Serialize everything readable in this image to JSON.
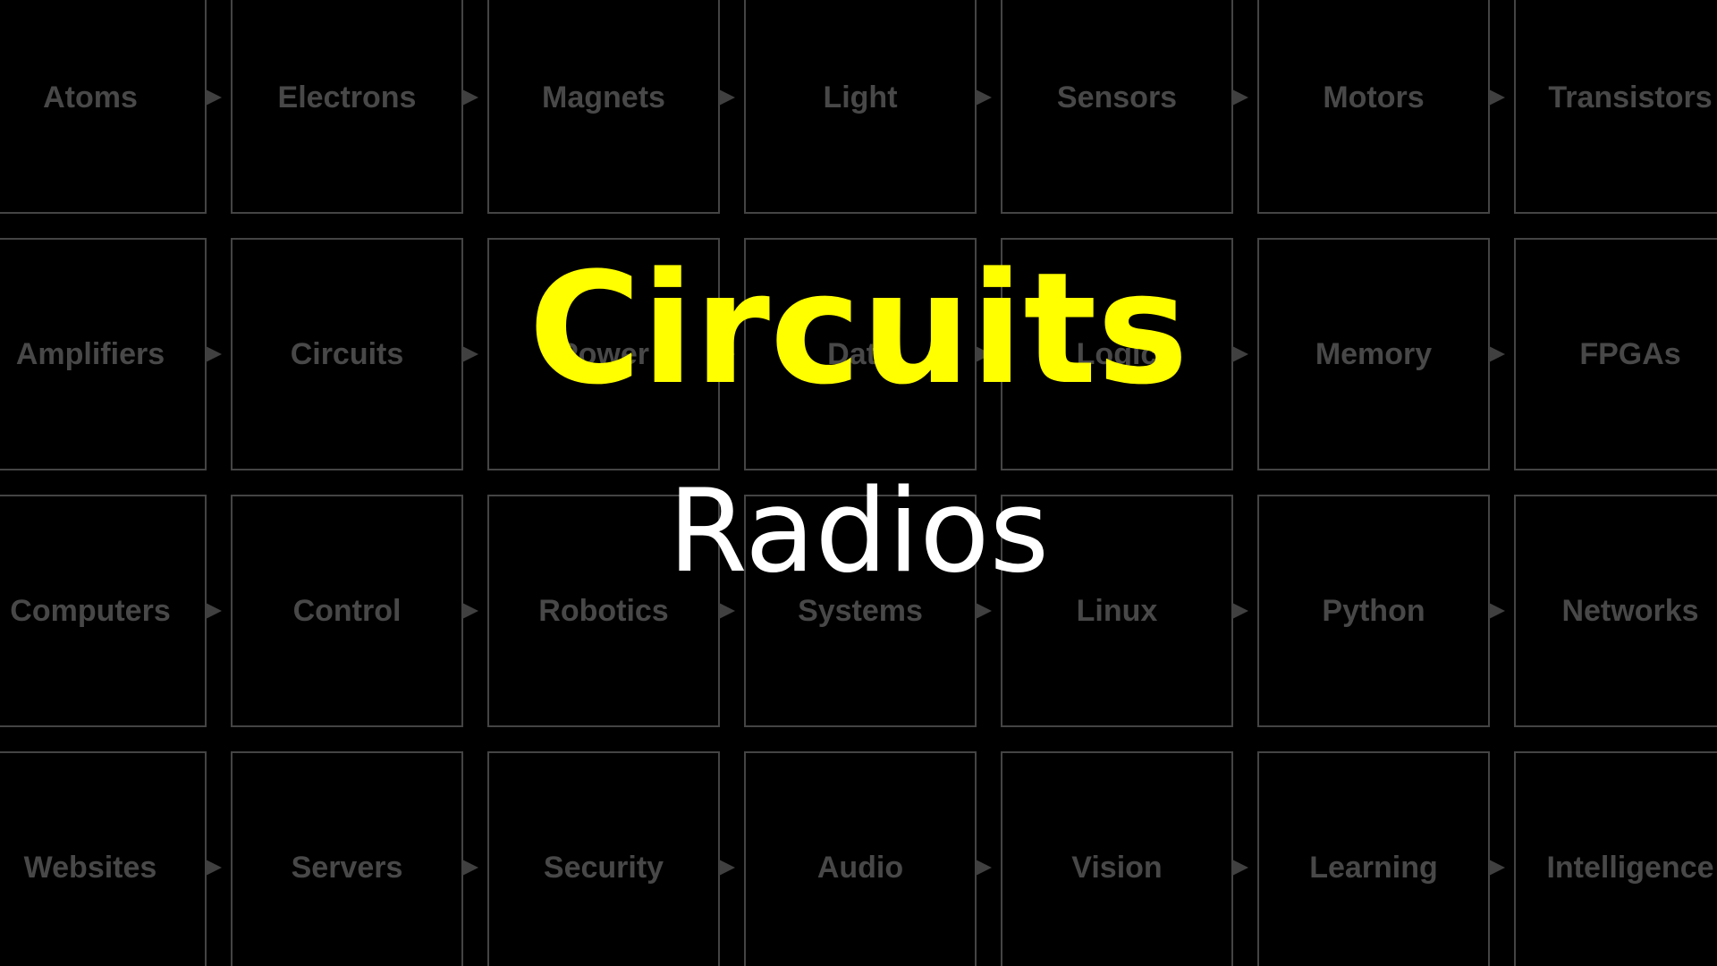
{
  "colors": {
    "background": "#000000",
    "tile_border": "#444444",
    "tile_text": "#484848",
    "arrow": "#404040",
    "title": "#ffff00",
    "subtitle": "#ffffff"
  },
  "grid": {
    "rows": [
      [
        "Atoms",
        "Electrons",
        "Magnets",
        "Light",
        "Sensors",
        "Motors",
        "Transistors"
      ],
      [
        "Amplifiers",
        "Circuits",
        "Power",
        "Data",
        "Logic",
        "Memory",
        "FPGAs"
      ],
      [
        "Computers",
        "Control",
        "Robotics",
        "Systems",
        "Linux",
        "Python",
        "Networks"
      ],
      [
        "Websites",
        "Servers",
        "Security",
        "Audio",
        "Vision",
        "Learning",
        "Intelligence"
      ]
    ]
  },
  "overlay": {
    "title": "Circuits",
    "subtitle": "Radios"
  }
}
